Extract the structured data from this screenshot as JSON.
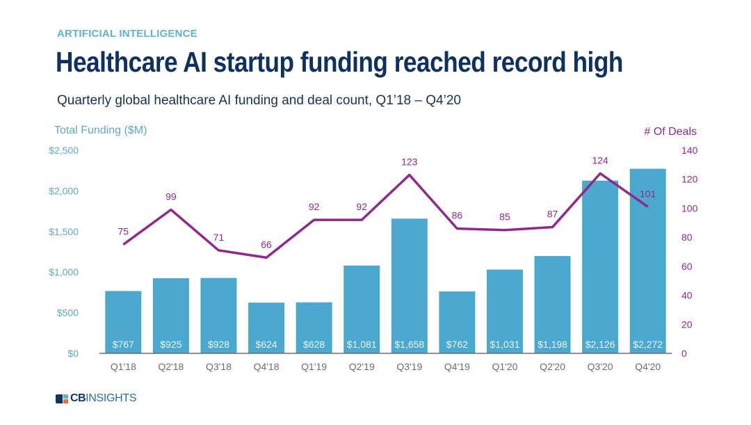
{
  "header": {
    "eyebrow": "ARTIFICIAL INTELLIGENCE",
    "title": "Healthcare AI startup funding reached record high",
    "subtitle": "Quarterly global healthcare AI funding and deal count, Q1’18 – Q4’20"
  },
  "footer": {
    "logo_cb": "CB",
    "logo_insights": "INSIGHTS"
  },
  "colors": {
    "bar": "#4ba9cf",
    "line": "#8e2a8a",
    "left_axis_text": "#5fa9c4",
    "right_axis_text": "#8e2a8a",
    "title": "#0f3160"
  },
  "chart_data": {
    "type": "bar",
    "title": "Healthcare AI startup funding reached record high",
    "subtitle": "Quarterly global healthcare AI funding and deal count, Q1’18 – Q4’20",
    "categories": [
      "Q1'18",
      "Q2'18",
      "Q3'18",
      "Q4'18",
      "Q1'19",
      "Q2'19",
      "Q3'19",
      "Q4'19",
      "Q1'20",
      "Q2'20",
      "Q3'20",
      "Q4'20"
    ],
    "series": [
      {
        "name": "Total Funding ($M)",
        "type": "bar",
        "axis": "left",
        "values": [
          767,
          925,
          928,
          624,
          628,
          1081,
          1658,
          762,
          1031,
          1198,
          2126,
          2272
        ],
        "labels": [
          "$767",
          "$925",
          "$928",
          "$624",
          "$628",
          "$1,081",
          "$1,658",
          "$762",
          "$1,031",
          "$1,198",
          "$2,126",
          "$2,272"
        ]
      },
      {
        "name": "# Of Deals",
        "type": "line",
        "axis": "right",
        "values": [
          75,
          99,
          71,
          66,
          92,
          92,
          123,
          86,
          85,
          87,
          124,
          101
        ],
        "labels": [
          "75",
          "99",
          "71",
          "66",
          "92",
          "92",
          "123",
          "86",
          "85",
          "87",
          "124",
          "101"
        ]
      }
    ],
    "ylabel": "Total Funding ($M)",
    "ylabel_right": "# Of Deals",
    "ylim": [
      0,
      2500
    ],
    "ylim_right": [
      0,
      140
    ],
    "yticks": [
      "$0",
      "$500",
      "$1,000",
      "$1,500",
      "$2,000",
      "$2,500"
    ],
    "yticks_values": [
      0,
      500,
      1000,
      1500,
      2000,
      2500
    ],
    "yticks_right": [
      "0",
      "20",
      "40",
      "60",
      "80",
      "100",
      "120",
      "140"
    ],
    "yticks_right_values": [
      0,
      20,
      40,
      60,
      80,
      100,
      120,
      140
    ],
    "grid": false,
    "legend": "none"
  }
}
